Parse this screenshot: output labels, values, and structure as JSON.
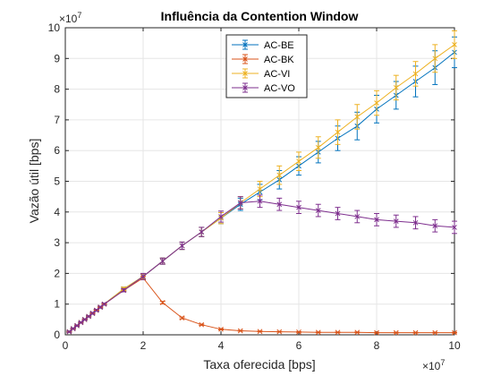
{
  "chart_data": {
    "type": "line",
    "title": "Influência da Contention Window",
    "xlabel": "Taxa oferecida [bps]",
    "ylabel": "Vazão útil [bps]",
    "x_exponent_label": "×10",
    "x_exponent_power": "7",
    "y_exponent_label": "×10",
    "y_exponent_power": "7",
    "xlim": [
      0,
      10
    ],
    "ylim": [
      0,
      10
    ],
    "xticks": [
      "0",
      "2",
      "4",
      "6",
      "8",
      "10"
    ],
    "yticks": [
      "0",
      "1",
      "2",
      "3",
      "4",
      "5",
      "6",
      "7",
      "8",
      "9",
      "10"
    ],
    "grid": true,
    "legend_position": "top-center",
    "series": [
      {
        "name": "AC-BE",
        "color": "#0072BD",
        "x": [
          0.1,
          0.2,
          0.3,
          0.4,
          0.5,
          0.6,
          0.7,
          0.8,
          0.9,
          1.0,
          1.5,
          2.0,
          2.5,
          3.0,
          3.5,
          4.0,
          4.5,
          5.0,
          5.5,
          6.0,
          6.5,
          7.0,
          7.5,
          8.0,
          8.5,
          9.0,
          9.5,
          10.0
        ],
        "y": [
          0.1,
          0.2,
          0.3,
          0.4,
          0.5,
          0.6,
          0.7,
          0.8,
          0.9,
          1.0,
          1.5,
          1.9,
          2.4,
          2.9,
          3.35,
          3.8,
          4.25,
          4.65,
          5.05,
          5.5,
          5.95,
          6.4,
          6.8,
          7.35,
          7.8,
          8.25,
          8.7,
          9.2
        ],
        "err": [
          0.02,
          0.02,
          0.02,
          0.02,
          0.02,
          0.02,
          0.03,
          0.03,
          0.03,
          0.03,
          0.05,
          0.08,
          0.1,
          0.12,
          0.15,
          0.18,
          0.2,
          0.25,
          0.3,
          0.3,
          0.35,
          0.4,
          0.45,
          0.45,
          0.45,
          0.5,
          0.55,
          0.5
        ]
      },
      {
        "name": "AC-BK",
        "color": "#D95319",
        "x": [
          0.1,
          0.2,
          0.3,
          0.4,
          0.5,
          0.6,
          0.7,
          0.8,
          0.9,
          1.0,
          1.5,
          2.0,
          2.5,
          3.0,
          3.5,
          4.0,
          4.5,
          5.0,
          5.5,
          6.0,
          6.5,
          7.0,
          7.5,
          8.0,
          8.5,
          9.0,
          9.5,
          10.0
        ],
        "y": [
          0.1,
          0.2,
          0.3,
          0.4,
          0.5,
          0.6,
          0.7,
          0.8,
          0.9,
          1.0,
          1.45,
          1.85,
          1.05,
          0.55,
          0.33,
          0.18,
          0.13,
          0.11,
          0.1,
          0.09,
          0.08,
          0.08,
          0.08,
          0.07,
          0.07,
          0.07,
          0.07,
          0.07
        ],
        "err": [
          0.01,
          0.01,
          0.01,
          0.01,
          0.01,
          0.01,
          0.01,
          0.01,
          0.01,
          0.01,
          0.03,
          0.05,
          0.04,
          0.03,
          0.02,
          0.02,
          0.01,
          0.01,
          0.01,
          0.01,
          0.01,
          0.01,
          0.01,
          0.01,
          0.01,
          0.01,
          0.01,
          0.01
        ]
      },
      {
        "name": "AC-VI",
        "color": "#EDB120",
        "x": [
          0.1,
          0.2,
          0.3,
          0.4,
          0.5,
          0.6,
          0.7,
          0.8,
          0.9,
          1.0,
          1.5,
          2.0,
          2.5,
          3.0,
          3.5,
          4.0,
          4.5,
          5.0,
          5.5,
          6.0,
          6.5,
          7.0,
          7.5,
          8.0,
          8.5,
          9.0,
          9.5,
          10.0
        ],
        "y": [
          0.1,
          0.2,
          0.3,
          0.4,
          0.5,
          0.6,
          0.7,
          0.8,
          0.9,
          1.0,
          1.5,
          1.9,
          2.4,
          2.9,
          3.35,
          3.8,
          4.3,
          4.75,
          5.2,
          5.65,
          6.1,
          6.6,
          7.1,
          7.55,
          8.05,
          8.5,
          9.0,
          9.45
        ],
        "err": [
          0.02,
          0.02,
          0.02,
          0.02,
          0.02,
          0.02,
          0.03,
          0.03,
          0.03,
          0.03,
          0.05,
          0.08,
          0.1,
          0.12,
          0.15,
          0.18,
          0.2,
          0.25,
          0.3,
          0.3,
          0.35,
          0.4,
          0.4,
          0.4,
          0.4,
          0.4,
          0.45,
          0.45
        ]
      },
      {
        "name": "AC-VO",
        "color": "#7E2F8E",
        "x": [
          0.1,
          0.2,
          0.3,
          0.4,
          0.5,
          0.6,
          0.7,
          0.8,
          0.9,
          1.0,
          1.5,
          2.0,
          2.5,
          3.0,
          3.5,
          4.0,
          4.5,
          5.0,
          5.5,
          6.0,
          6.5,
          7.0,
          7.5,
          8.0,
          8.5,
          9.0,
          9.5,
          10.0
        ],
        "y": [
          0.1,
          0.2,
          0.3,
          0.4,
          0.5,
          0.6,
          0.7,
          0.8,
          0.9,
          1.0,
          1.45,
          1.9,
          2.4,
          2.9,
          3.35,
          3.85,
          4.3,
          4.35,
          4.25,
          4.15,
          4.05,
          3.95,
          3.85,
          3.75,
          3.7,
          3.65,
          3.55,
          3.5
        ],
        "err": [
          0.02,
          0.02,
          0.02,
          0.02,
          0.02,
          0.02,
          0.03,
          0.03,
          0.03,
          0.03,
          0.05,
          0.1,
          0.1,
          0.12,
          0.15,
          0.18,
          0.2,
          0.2,
          0.2,
          0.2,
          0.2,
          0.2,
          0.2,
          0.2,
          0.2,
          0.2,
          0.2,
          0.2
        ]
      }
    ]
  }
}
